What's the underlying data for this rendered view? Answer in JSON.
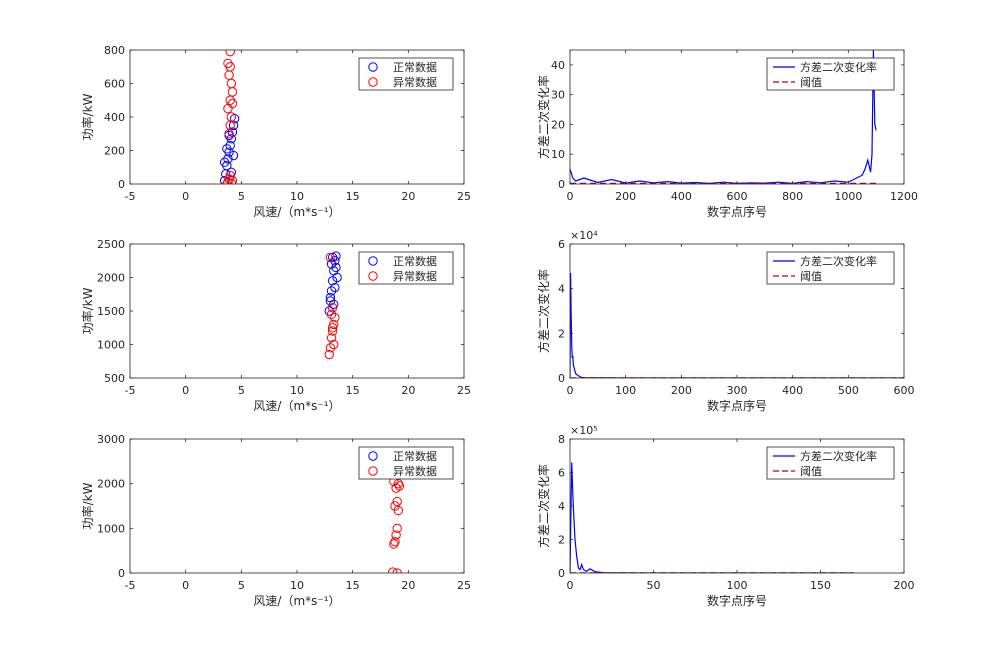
{
  "colors": {
    "normal": "#0000ff",
    "abnormal": "#ff0000",
    "line": "#0000ff",
    "threshold": "#c00000",
    "axis": "#262626"
  },
  "legend_scatter": {
    "normal": "正常数据",
    "abnormal": "异常数据"
  },
  "legend_line": {
    "rate": "方差二次变化率",
    "threshold": "阈值"
  },
  "chart_data": [
    {
      "type": "scatter",
      "xlabel": "风速/（m*s⁻¹）",
      "ylabel": "功率/kW",
      "xlim": [
        -5,
        25
      ],
      "ylim": [
        0,
        800
      ],
      "xticks": [
        -5,
        0,
        5,
        10,
        15,
        20,
        25
      ],
      "yticks": [
        0,
        200,
        400,
        600,
        800
      ],
      "legend_position": "top-right",
      "series": [
        {
          "name": "正常数据",
          "x": [
            3.5,
            3.6,
            3.7,
            3.8,
            3.9,
            4.0,
            4.1,
            4.2,
            4.3,
            4.4,
            3.5,
            3.7,
            3.9,
            4.1,
            4.3
          ],
          "y": [
            20,
            60,
            110,
            150,
            190,
            230,
            270,
            310,
            350,
            390,
            130,
            210,
            290,
            70,
            170
          ]
        },
        {
          "name": "异常数据",
          "x": [
            3.7,
            3.8,
            3.9,
            4.0,
            4.1,
            4.2,
            3.9,
            4.0,
            4.1,
            3.8,
            4.0,
            4.2,
            4.1,
            3.9,
            4.0,
            3.8,
            4.2,
            4.0
          ],
          "y": [
            0,
            10,
            30,
            50,
            5,
            20,
            300,
            350,
            400,
            450,
            500,
            550,
            600,
            650,
            700,
            720,
            480,
            790
          ]
        }
      ]
    },
    {
      "type": "line",
      "xlabel": "数字点序号",
      "ylabel": "方差二次变化率",
      "xlim": [
        0,
        1200
      ],
      "ylim": [
        0,
        45
      ],
      "xticks": [
        0,
        200,
        400,
        600,
        800,
        1000,
        1200
      ],
      "yticks": [
        0,
        10,
        20,
        30,
        40
      ],
      "exponent": "",
      "legend_position": "top-right",
      "series": [
        {
          "name": "方差二次变化率",
          "x": [
            0,
            10,
            20,
            50,
            100,
            150,
            200,
            250,
            300,
            350,
            400,
            450,
            500,
            550,
            600,
            650,
            700,
            750,
            800,
            850,
            900,
            950,
            1000,
            1030,
            1050,
            1060,
            1070,
            1080,
            1085,
            1090,
            1095,
            1100
          ],
          "y": [
            5,
            2,
            1,
            2,
            0.5,
            1.5,
            0.3,
            1,
            0.4,
            0.8,
            0.3,
            0.5,
            0.2,
            0.6,
            0.2,
            0.4,
            0.3,
            0.6,
            0.2,
            0.8,
            0.4,
            1,
            0.6,
            2,
            3,
            5,
            8,
            4,
            10,
            45,
            20,
            18
          ]
        },
        {
          "name": "阈值",
          "x": [
            0,
            1100
          ],
          "y": [
            0.2,
            0.2
          ]
        }
      ]
    },
    {
      "type": "scatter",
      "xlabel": "风速/（m*s⁻¹）",
      "ylabel": "功率/kW",
      "xlim": [
        -5,
        25
      ],
      "ylim": [
        500,
        2500
      ],
      "xticks": [
        -5,
        0,
        5,
        10,
        15,
        20,
        25
      ],
      "yticks": [
        500,
        1000,
        1500,
        2000,
        2500
      ],
      "legend_position": "top-right",
      "series": [
        {
          "name": "正常数据",
          "x": [
            12.9,
            13.0,
            13.1,
            13.2,
            13.3,
            13.4,
            13.5,
            13.6,
            13.0,
            13.2,
            13.4,
            13.1,
            13.3,
            13.5
          ],
          "y": [
            1500,
            1650,
            1800,
            1950,
            2100,
            2250,
            2320,
            2000,
            1700,
            2300,
            1850,
            2200,
            1600,
            2150
          ]
        },
        {
          "name": "异常数据",
          "x": [
            12.9,
            13.0,
            13.1,
            13.2,
            13.3,
            13.4,
            13.1,
            13.2,
            13.0,
            13.3,
            13.2
          ],
          "y": [
            850,
            950,
            1100,
            1200,
            1300,
            1400,
            1450,
            1550,
            2300,
            1000,
            1250
          ]
        }
      ]
    },
    {
      "type": "line",
      "xlabel": "数字点序号",
      "ylabel": "方差二次变化率",
      "xlim": [
        0,
        600
      ],
      "ylim": [
        0,
        60000
      ],
      "xticks": [
        0,
        100,
        200,
        300,
        400,
        500,
        600
      ],
      "yticks": [
        0,
        20000,
        40000,
        60000
      ],
      "exponent": "×10⁴",
      "legend_position": "top-right",
      "series": [
        {
          "name": "方差二次变化率",
          "x": [
            0,
            1,
            2,
            3,
            4,
            5,
            6,
            8,
            10,
            15,
            20,
            30,
            50,
            100,
            200,
            300,
            400,
            500,
            600
          ],
          "y": [
            0,
            47000,
            30000,
            15000,
            9000,
            10000,
            6000,
            4000,
            2000,
            1000,
            300,
            100,
            50,
            20,
            10,
            5,
            5,
            5,
            5
          ]
        },
        {
          "name": "阈值",
          "x": [
            0,
            600
          ],
          "y": [
            100,
            100
          ]
        }
      ]
    },
    {
      "type": "scatter",
      "xlabel": "风速/（m*s⁻¹）",
      "ylabel": "功率/kW",
      "xlim": [
        -5,
        25
      ],
      "ylim": [
        0,
        3000
      ],
      "xticks": [
        -5,
        0,
        5,
        10,
        15,
        20,
        25
      ],
      "yticks": [
        0,
        1000,
        2000,
        3000
      ],
      "legend_position": "top-right",
      "series": [
        {
          "name": "正常数据",
          "x": [],
          "y": []
        },
        {
          "name": "异常数据",
          "x": [
            18.6,
            18.7,
            18.8,
            18.9,
            19.0,
            19.1,
            18.8,
            19.0,
            18.9,
            19.1,
            18.7,
            19.2,
            19.0
          ],
          "y": [
            20,
            650,
            700,
            850,
            1000,
            1400,
            1500,
            1600,
            1900,
            2000,
            2050,
            1950,
            0
          ]
        }
      ]
    },
    {
      "type": "line",
      "xlabel": "数字点序号",
      "ylabel": "方差二次变化率",
      "xlim": [
        0,
        200
      ],
      "ylim": [
        0,
        800000
      ],
      "xticks": [
        0,
        50,
        100,
        150,
        200
      ],
      "yticks": [
        0,
        200000,
        400000,
        600000,
        800000
      ],
      "exponent": "×10⁵",
      "legend_position": "top-right",
      "series": [
        {
          "name": "方差二次变化率",
          "x": [
            0,
            1,
            2,
            3,
            4,
            5,
            6,
            7,
            8,
            10,
            12,
            15,
            20,
            30,
            50,
            100,
            170
          ],
          "y": [
            0,
            660000,
            400000,
            200000,
            100000,
            30000,
            20000,
            50000,
            20000,
            10000,
            25000,
            8000,
            2000,
            500,
            200,
            100,
            100
          ]
        },
        {
          "name": "阈值",
          "x": [
            0,
            170
          ],
          "y": [
            500,
            500
          ]
        }
      ]
    }
  ]
}
